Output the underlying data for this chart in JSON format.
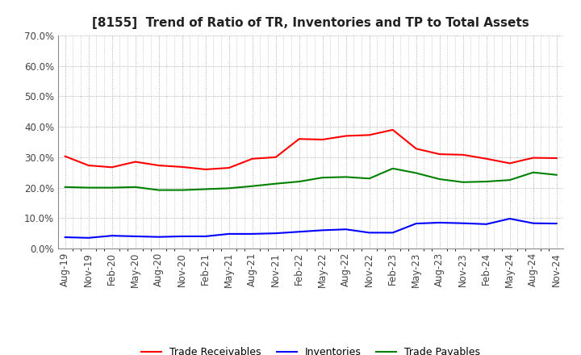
{
  "title": "[8155]  Trend of Ratio of TR, Inventories and TP to Total Assets",
  "x_labels": [
    "Aug-19",
    "Nov-19",
    "Feb-20",
    "May-20",
    "Aug-20",
    "Nov-20",
    "Feb-21",
    "May-21",
    "Aug-21",
    "Nov-21",
    "Feb-22",
    "May-22",
    "Aug-22",
    "Nov-22",
    "Feb-23",
    "May-23",
    "Aug-23",
    "Nov-23",
    "Feb-24",
    "May-24",
    "Aug-24",
    "Nov-24"
  ],
  "trade_receivables": [
    0.303,
    0.273,
    0.267,
    0.285,
    0.273,
    0.268,
    0.26,
    0.265,
    0.295,
    0.3,
    0.36,
    0.358,
    0.37,
    0.373,
    0.39,
    0.328,
    0.31,
    0.308,
    0.295,
    0.28,
    0.298,
    0.297
  ],
  "inventories": [
    0.037,
    0.035,
    0.042,
    0.04,
    0.038,
    0.04,
    0.04,
    0.048,
    0.048,
    0.05,
    0.055,
    0.06,
    0.063,
    0.052,
    0.052,
    0.082,
    0.085,
    0.083,
    0.08,
    0.098,
    0.083,
    0.082
  ],
  "trade_payables": [
    0.202,
    0.2,
    0.2,
    0.202,
    0.192,
    0.192,
    0.195,
    0.198,
    0.205,
    0.213,
    0.22,
    0.233,
    0.235,
    0.23,
    0.263,
    0.248,
    0.228,
    0.218,
    0.22,
    0.225,
    0.25,
    0.242
  ],
  "ylim": [
    0.0,
    0.7
  ],
  "yticks": [
    0.0,
    0.1,
    0.2,
    0.3,
    0.4,
    0.5,
    0.6,
    0.7
  ],
  "color_tr": "#FF0000",
  "color_inv": "#0000FF",
  "color_tp": "#008000",
  "background_color": "#FFFFFF",
  "grid_color": "#999999",
  "legend_labels": [
    "Trade Receivables",
    "Inventories",
    "Trade Payables"
  ],
  "title_fontsize": 11,
  "tick_fontsize": 8.5
}
